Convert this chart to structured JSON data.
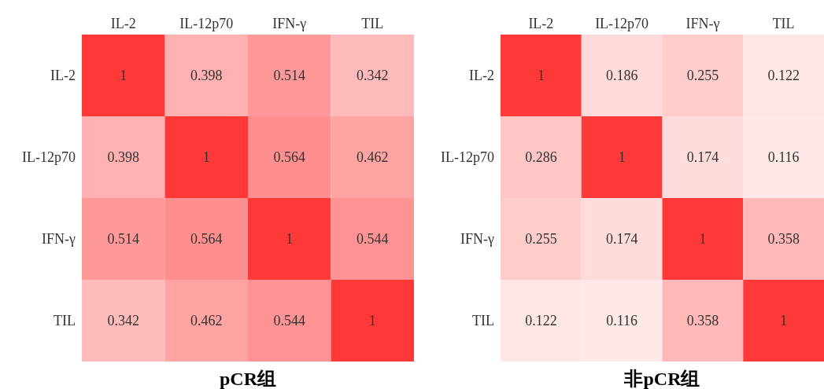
{
  "chart_data": [
    {
      "type": "heatmap",
      "title": "pCR组",
      "data_labels": true,
      "categories": [
        "IL-2",
        "IL-12p70",
        "IFN-γ",
        "TIL"
      ],
      "y_categories": [
        "IL-2",
        "IL-12p70",
        "IFN-γ",
        "TIL"
      ],
      "color": "#ff3838",
      "cells": [
        [
          1,
          0.398,
          0.514,
          0.342
        ],
        [
          0.398,
          1,
          0.564,
          0.462
        ],
        [
          0.514,
          0.564,
          1,
          0.544
        ],
        [
          0.342,
          0.462,
          0.544,
          1
        ]
      ]
    },
    {
      "type": "heatmap",
      "title": "非pCR组",
      "data_labels": true,
      "categories": [
        "IL-2",
        "IL-12p70",
        "IFN-γ",
        "TIL"
      ],
      "y_categories": [
        "IL-2",
        "IL-12p70",
        "IFN-γ",
        "TIL"
      ],
      "color": "#ff3838",
      "cells": [
        [
          1,
          0.186,
          0.255,
          0.122
        ],
        [
          0.286,
          1,
          0.174,
          0.116
        ],
        [
          0.255,
          0.174,
          1,
          0.358
        ],
        [
          0.122,
          0.116,
          0.358,
          1
        ]
      ]
    }
  ]
}
